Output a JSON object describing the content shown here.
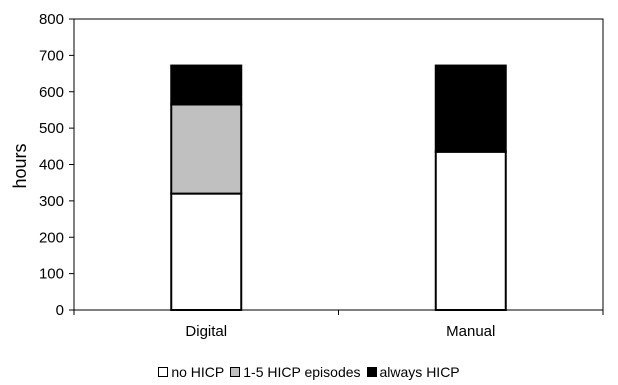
{
  "chart_data": {
    "type": "bar",
    "stacked": true,
    "categories": [
      "Digital",
      "Manual"
    ],
    "series": [
      {
        "name": "no HICP",
        "values": [
          320,
          435
        ],
        "color": "#ffffff"
      },
      {
        "name": "1-5 HICP episodes",
        "values": [
          245,
          0
        ],
        "color": "#c0c0c0"
      },
      {
        "name": "always HICP",
        "values": [
          107,
          237
        ],
        "color": "#000000"
      }
    ],
    "title": "",
    "xlabel": "",
    "ylabel": "hours",
    "ylim": [
      0,
      800
    ],
    "yticks": [
      0,
      100,
      200,
      300,
      400,
      500,
      600,
      700,
      800
    ],
    "grid": false,
    "legend_position": "bottom"
  }
}
